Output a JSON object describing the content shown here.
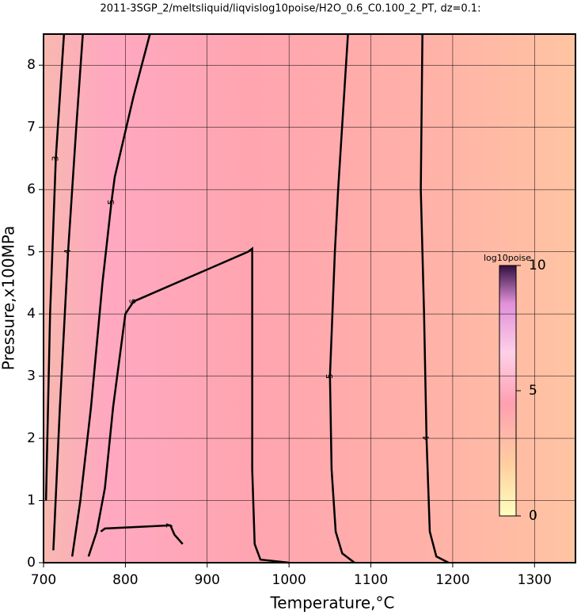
{
  "chart_data": {
    "type": "contour",
    "title": "2011-3SGP_2/meltsliquid/liqvislog10poise/H2O_0.6_C0.100_2_PT, dz=0.1:",
    "xlabel": "Temperature,°C",
    "ylabel": "Pressure,x100MPa",
    "xlim": [
      700,
      1350
    ],
    "ylim": [
      0,
      8.5
    ],
    "xticks": [
      700,
      800,
      900,
      1000,
      1100,
      1200,
      1300
    ],
    "yticks": [
      0,
      1,
      2,
      3,
      4,
      5,
      6,
      7,
      8
    ],
    "grid": true,
    "contours": [
      {
        "level": 4,
        "x": [
          1195,
          1180,
          1172,
          1168,
          1165,
          1161,
          1163
        ],
        "y": [
          0,
          0.1,
          0.5,
          2,
          4,
          6,
          8.5
        ]
      },
      {
        "level": 5,
        "x": [
          1080,
          1065,
          1057,
          1052,
          1050,
          1056,
          1060,
          1072
        ],
        "y": [
          0,
          0.15,
          0.5,
          1.5,
          3,
          5,
          6,
          8.5
        ]
      },
      {
        "level": 6,
        "x": [
          1000,
          965,
          958,
          955,
          955,
          950,
          880,
          810,
          800,
          795,
          785,
          775,
          765,
          755
        ],
        "y": [
          0,
          0.05,
          0.3,
          1.5,
          5.05,
          5.0,
          4.6,
          4.2,
          4.0,
          3.5,
          2.5,
          1.2,
          0.5,
          0.1
        ]
      },
      {
        "level": 7,
        "x": [
          770,
          775,
          855,
          860,
          870
        ],
        "y": [
          0.5,
          0.55,
          0.6,
          0.45,
          0.3
        ]
      },
      {
        "level": 5,
        "x": [
          735,
          745,
          758,
          772,
          783,
          787,
          810,
          830
        ],
        "y": [
          0.1,
          1,
          2.5,
          4.5,
          5.8,
          6.2,
          7.5,
          8.5
        ]
      },
      {
        "level": 4,
        "x": [
          712,
          720,
          730,
          740,
          748
        ],
        "y": [
          0.2,
          2.5,
          5,
          7,
          8.5
        ]
      },
      {
        "level": 3,
        "x": [
          703,
          708,
          715,
          725
        ],
        "y": [
          1,
          4,
          6.5,
          8.5
        ]
      }
    ],
    "colorbar": {
      "label": "log10poise",
      "lim": [
        0,
        10
      ],
      "ticks": [
        0,
        5,
        10
      ]
    }
  }
}
